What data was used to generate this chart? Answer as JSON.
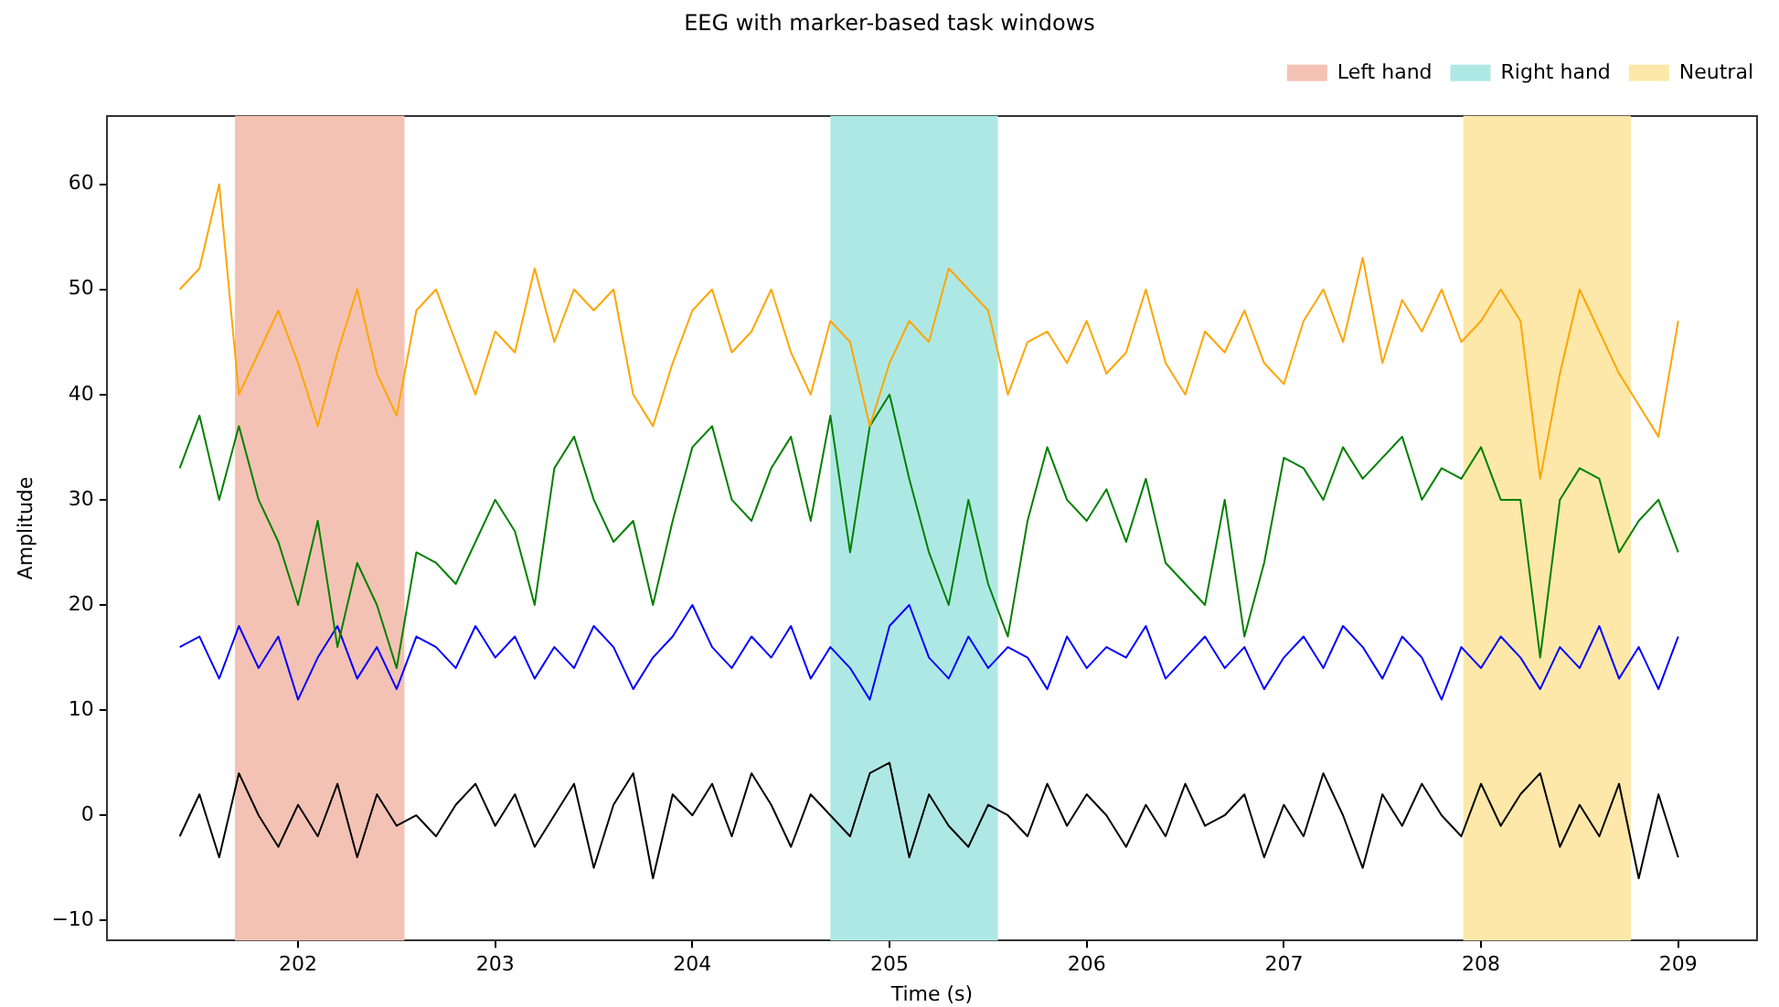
{
  "chart_data": {
    "type": "line",
    "title": "EEG with marker-based task windows",
    "xlabel": "Time (s)",
    "ylabel": "Amplitude",
    "x": [
      201.4,
      201.5,
      201.6,
      201.7,
      201.8,
      201.9,
      202.0,
      202.1,
      202.2,
      202.3,
      202.4,
      202.5,
      202.6,
      202.7,
      202.8,
      202.9,
      203.0,
      203.1,
      203.2,
      203.3,
      203.4,
      203.5,
      203.6,
      203.7,
      203.8,
      203.9,
      204.0,
      204.1,
      204.2,
      204.3,
      204.4,
      204.5,
      204.6,
      204.7,
      204.8,
      204.9,
      205.0,
      205.1,
      205.2,
      205.3,
      205.4,
      205.5,
      205.6,
      205.7,
      205.8,
      205.9,
      206.0,
      206.1,
      206.2,
      206.3,
      206.4,
      206.5,
      206.6,
      206.7,
      206.8,
      206.9,
      207.0,
      207.1,
      207.2,
      207.3,
      207.4,
      207.5,
      207.6,
      207.7,
      207.8,
      207.9,
      208.0,
      208.1,
      208.2,
      208.3,
      208.4,
      208.5,
      208.6,
      208.7,
      208.8,
      208.9,
      209.0
    ],
    "series": [
      {
        "color": "#ffa500",
        "values": [
          50,
          52,
          60,
          40,
          44,
          48,
          43,
          37,
          44,
          50,
          42,
          38,
          48,
          50,
          45,
          40,
          46,
          44,
          52,
          45,
          50,
          48,
          50,
          40,
          37,
          43,
          48,
          50,
          44,
          46,
          50,
          44,
          40,
          47,
          45,
          37,
          43,
          47,
          45,
          52,
          50,
          48,
          40,
          45,
          46,
          43,
          47,
          42,
          44,
          50,
          43,
          40,
          46,
          44,
          48,
          43,
          41,
          47,
          50,
          45,
          53,
          43,
          49,
          46,
          50,
          45,
          47,
          50,
          47,
          32,
          42,
          50,
          46,
          42,
          39,
          36,
          47
        ]
      },
      {
        "color": "#008000",
        "values": [
          33,
          38,
          30,
          37,
          30,
          26,
          20,
          28,
          16,
          24,
          20,
          14,
          25,
          24,
          22,
          26,
          30,
          27,
          20,
          33,
          36,
          30,
          26,
          28,
          20,
          28,
          35,
          37,
          30,
          28,
          33,
          36,
          28,
          38,
          25,
          37,
          40,
          32,
          25,
          20,
          30,
          22,
          17,
          28,
          35,
          30,
          28,
          31,
          26,
          32,
          24,
          22,
          20,
          30,
          17,
          24,
          34,
          33,
          30,
          35,
          32,
          34,
          36,
          30,
          33,
          32,
          35,
          30,
          30,
          15,
          30,
          33,
          32,
          25,
          28,
          30,
          25
        ]
      },
      {
        "color": "#0000ff",
        "values": [
          16,
          17,
          13,
          18,
          14,
          17,
          11,
          15,
          18,
          13,
          16,
          12,
          17,
          16,
          14,
          18,
          15,
          17,
          13,
          16,
          14,
          18,
          16,
          12,
          15,
          17,
          20,
          16,
          14,
          17,
          15,
          18,
          13,
          16,
          14,
          11,
          18,
          20,
          15,
          13,
          17,
          14,
          16,
          15,
          12,
          17,
          14,
          16,
          15,
          18,
          13,
          15,
          17,
          14,
          16,
          12,
          15,
          17,
          14,
          18,
          16,
          13,
          17,
          15,
          11,
          16,
          14,
          17,
          15,
          12,
          16,
          14,
          18,
          13,
          16,
          12,
          17
        ]
      },
      {
        "color": "#000000",
        "values": [
          -2,
          2,
          -4,
          4,
          0,
          -3,
          1,
          -2,
          3,
          -4,
          2,
          -1,
          0,
          -2,
          1,
          3,
          -1,
          2,
          -3,
          0,
          3,
          -5,
          1,
          4,
          -6,
          2,
          0,
          3,
          -2,
          4,
          1,
          -3,
          2,
          0,
          -2,
          4,
          5,
          -4,
          2,
          -1,
          -3,
          1,
          0,
          -2,
          3,
          -1,
          2,
          0,
          -3,
          1,
          -2,
          3,
          -1,
          0,
          2,
          -4,
          1,
          -2,
          4,
          0,
          -5,
          2,
          -1,
          3,
          0,
          -2,
          3,
          -1,
          2,
          4,
          -3,
          1,
          -2,
          3,
          -6,
          2,
          -4
        ]
      }
    ],
    "bands": [
      {
        "axis": "x",
        "from": 201.68,
        "to": 202.54,
        "label": "Left hand",
        "color": "#f4c2b4"
      },
      {
        "axis": "x",
        "from": 204.7,
        "to": 205.55,
        "label": "Right hand",
        "color": "#aee8e4"
      },
      {
        "axis": "x",
        "from": 207.91,
        "to": 208.76,
        "label": "Neutral",
        "color": "#fde8a9"
      }
    ],
    "legend": "top right",
    "grid": false,
    "xlim": [
      201.03,
      209.4
    ],
    "xticks": [
      202,
      203,
      204,
      205,
      206,
      207,
      208,
      209
    ],
    "ylim": [
      -11.9,
      66.5
    ],
    "yticks": [
      -10,
      0,
      10,
      20,
      30,
      40,
      50,
      60
    ]
  }
}
